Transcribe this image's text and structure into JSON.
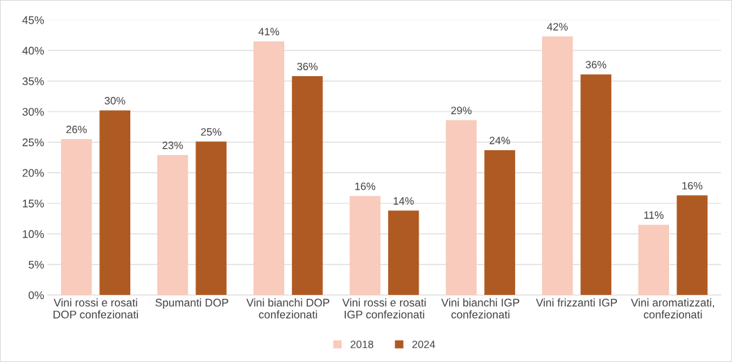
{
  "chart_data": {
    "type": "bar",
    "categories": [
      "Vini rossi e rosati\nDOP confezionati",
      "Spumanti DOP",
      "Vini bianchi DOP\nconfezionati",
      "Vini rossi e rosati\nIGP confezionati",
      "Vini bianchi IGP\nconfezionati",
      "Vini frizzanti IGP",
      "Vini aromatizzati,\nconfezionati"
    ],
    "series": [
      {
        "name": "2018",
        "color": "#f8cbbd",
        "values": [
          25.5,
          22.9,
          41.5,
          16.2,
          28.6,
          42.3,
          11.5
        ],
        "value_labels": [
          "26%",
          "23%",
          "41%",
          "16%",
          "29%",
          "42%",
          "11%"
        ]
      },
      {
        "name": "2024",
        "color": "#af5a22",
        "values": [
          30.2,
          25.1,
          35.8,
          13.8,
          23.7,
          36.1,
          16.3
        ],
        "value_labels": [
          "30%",
          "25%",
          "36%",
          "14%",
          "24%",
          "36%",
          "16%"
        ]
      }
    ],
    "ylim": [
      0,
      45
    ],
    "yticks": [
      {
        "value": 0,
        "label": "0%"
      },
      {
        "value": 5,
        "label": "5%"
      },
      {
        "value": 10,
        "label": "10%"
      },
      {
        "value": 15,
        "label": "15%"
      },
      {
        "value": 20,
        "label": "20%"
      },
      {
        "value": 25,
        "label": "25%"
      },
      {
        "value": 30,
        "label": "30%"
      },
      {
        "value": 35,
        "label": "35%"
      },
      {
        "value": 40,
        "label": "40%"
      },
      {
        "value": 45,
        "label": "45%"
      }
    ],
    "grid": "y",
    "legend": "bottom"
  }
}
